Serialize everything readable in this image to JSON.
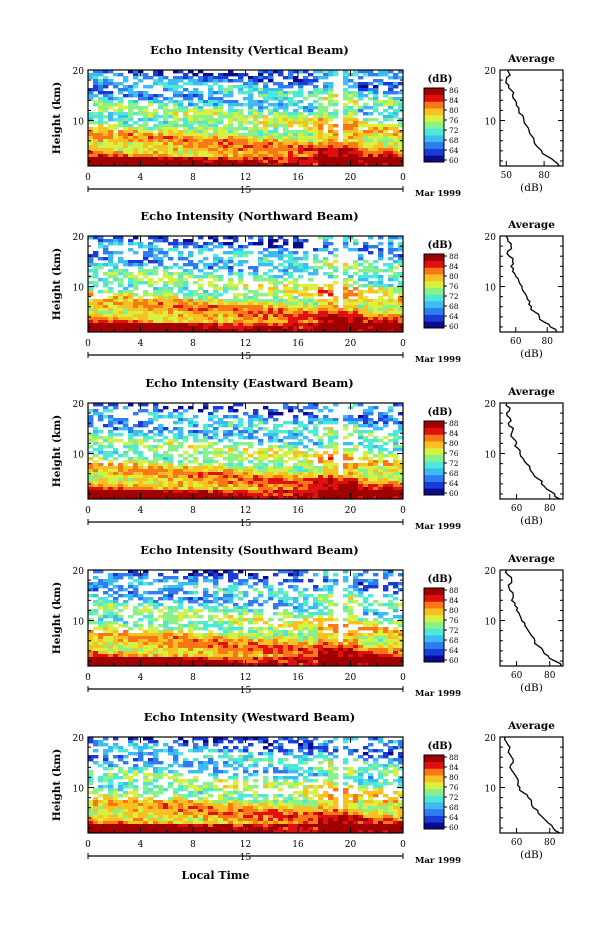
{
  "figure": {
    "xlabel": "Local Time",
    "colorbar_label": "(dB)",
    "average_title": "Average",
    "average_xlabel": "(dB)",
    "ylabel": "Height (km)",
    "date_label": "Mar 1999",
    "day_label": "15",
    "colormap": [
      "#0a0a8c",
      "#1a3cd6",
      "#2f7cf0",
      "#3cbcf0",
      "#4ee8d8",
      "#8af08a",
      "#d8f040",
      "#f8c020",
      "#f87818",
      "#e01010",
      "#a00000"
    ]
  },
  "chart_data": [
    {
      "type": "heatmap",
      "title": "Echo Intensity (Vertical Beam)",
      "x_ticks": [
        "0",
        "4",
        "8",
        "12",
        "16",
        "20",
        "0"
      ],
      "y_ticks": [
        "20",
        "10"
      ],
      "ylim": [
        1,
        20
      ],
      "xlim": [
        0,
        24
      ],
      "colorbar_ticks": [
        "86",
        "84",
        "80",
        "76",
        "72",
        "68",
        "64",
        "60"
      ],
      "colorbar_range": [
        60,
        86
      ],
      "average": {
        "title": "Average",
        "x_ticks": [
          "50",
          "80"
        ],
        "y_ticks": [
          "20",
          "10"
        ],
        "xlim": [
          45,
          95
        ],
        "ylim": [
          1,
          20
        ],
        "profile": [
          {
            "h": 1,
            "db": 92
          },
          {
            "h": 2,
            "db": 88
          },
          {
            "h": 3,
            "db": 82
          },
          {
            "h": 4,
            "db": 78
          },
          {
            "h": 5,
            "db": 74
          },
          {
            "h": 6,
            "db": 72
          },
          {
            "h": 7,
            "db": 70
          },
          {
            "h": 8,
            "db": 68
          },
          {
            "h": 9,
            "db": 66
          },
          {
            "h": 10,
            "db": 64
          },
          {
            "h": 11,
            "db": 63
          },
          {
            "h": 12,
            "db": 60
          },
          {
            "h": 13,
            "db": 58
          },
          {
            "h": 14,
            "db": 57
          },
          {
            "h": 15,
            "db": 55
          },
          {
            "h": 16,
            "db": 54
          },
          {
            "h": 17,
            "db": 52
          },
          {
            "h": 18,
            "db": 50
          },
          {
            "h": 19,
            "db": 53
          },
          {
            "h": 20,
            "db": 51
          }
        ]
      }
    },
    {
      "type": "heatmap",
      "title": "Echo Intensity (Northward Beam)",
      "x_ticks": [
        "0",
        "4",
        "8",
        "12",
        "16",
        "20",
        "0"
      ],
      "y_ticks": [
        "20",
        "10"
      ],
      "ylim": [
        1,
        20
      ],
      "xlim": [
        0,
        24
      ],
      "colorbar_ticks": [
        "88",
        "84",
        "80",
        "76",
        "72",
        "68",
        "64",
        "60"
      ],
      "colorbar_range": [
        60,
        88
      ],
      "average": {
        "title": "Average",
        "x_ticks": [
          "60",
          "80"
        ],
        "y_ticks": [
          "20",
          "10"
        ],
        "xlim": [
          50,
          90
        ],
        "ylim": [
          1,
          20
        ],
        "profile": [
          {
            "h": 1,
            "db": 86
          },
          {
            "h": 2,
            "db": 82
          },
          {
            "h": 3,
            "db": 78
          },
          {
            "h": 4,
            "db": 75
          },
          {
            "h": 5,
            "db": 72
          },
          {
            "h": 6,
            "db": 70
          },
          {
            "h": 7,
            "db": 69
          },
          {
            "h": 8,
            "db": 67
          },
          {
            "h": 9,
            "db": 65
          },
          {
            "h": 10,
            "db": 64
          },
          {
            "h": 11,
            "db": 62
          },
          {
            "h": 12,
            "db": 60
          },
          {
            "h": 13,
            "db": 58
          },
          {
            "h": 14,
            "db": 57
          },
          {
            "h": 15,
            "db": 58
          },
          {
            "h": 16,
            "db": 56
          },
          {
            "h": 17,
            "db": 55
          },
          {
            "h": 18,
            "db": 57
          },
          {
            "h": 19,
            "db": 55
          },
          {
            "h": 20,
            "db": 54
          }
        ]
      }
    },
    {
      "type": "heatmap",
      "title": "Echo Intensity (Eastward Beam)",
      "x_ticks": [
        "0",
        "4",
        "8",
        "12",
        "16",
        "20",
        "0"
      ],
      "y_ticks": [
        "20",
        "10"
      ],
      "ylim": [
        1,
        20
      ],
      "xlim": [
        0,
        24
      ],
      "colorbar_ticks": [
        "88",
        "84",
        "80",
        "76",
        "72",
        "68",
        "64",
        "60"
      ],
      "colorbar_range": [
        60,
        88
      ],
      "average": {
        "title": "Average",
        "x_ticks": [
          "60",
          "80"
        ],
        "y_ticks": [
          "20",
          "10"
        ],
        "xlim": [
          50,
          88
        ],
        "ylim": [
          1,
          20
        ],
        "profile": [
          {
            "h": 1,
            "db": 86
          },
          {
            "h": 2,
            "db": 83
          },
          {
            "h": 3,
            "db": 78
          },
          {
            "h": 4,
            "db": 75
          },
          {
            "h": 5,
            "db": 73
          },
          {
            "h": 6,
            "db": 70
          },
          {
            "h": 7,
            "db": 68
          },
          {
            "h": 8,
            "db": 66
          },
          {
            "h": 9,
            "db": 64
          },
          {
            "h": 10,
            "db": 62
          },
          {
            "h": 11,
            "db": 61
          },
          {
            "h": 12,
            "db": 60
          },
          {
            "h": 13,
            "db": 58
          },
          {
            "h": 14,
            "db": 57
          },
          {
            "h": 15,
            "db": 58
          },
          {
            "h": 16,
            "db": 55
          },
          {
            "h": 17,
            "db": 56
          },
          {
            "h": 18,
            "db": 54
          },
          {
            "h": 19,
            "db": 56
          },
          {
            "h": 20,
            "db": 54
          }
        ]
      }
    },
    {
      "type": "heatmap",
      "title": "Echo Intensity (Southward Beam)",
      "x_ticks": [
        "0",
        "4",
        "8",
        "12",
        "16",
        "20",
        "0"
      ],
      "y_ticks": [
        "20",
        "10"
      ],
      "ylim": [
        1,
        20
      ],
      "xlim": [
        0,
        24
      ],
      "colorbar_ticks": [
        "88",
        "84",
        "80",
        "76",
        "72",
        "68",
        "64",
        "60"
      ],
      "colorbar_range": [
        60,
        88
      ],
      "average": {
        "title": "Average",
        "x_ticks": [
          "60",
          "80"
        ],
        "y_ticks": [
          "20",
          "10"
        ],
        "xlim": [
          50,
          88
        ],
        "ylim": [
          1,
          20
        ],
        "profile": [
          {
            "h": 1,
            "db": 87
          },
          {
            "h": 2,
            "db": 83
          },
          {
            "h": 3,
            "db": 79
          },
          {
            "h": 4,
            "db": 76
          },
          {
            "h": 5,
            "db": 73
          },
          {
            "h": 6,
            "db": 71
          },
          {
            "h": 7,
            "db": 69
          },
          {
            "h": 8,
            "db": 67
          },
          {
            "h": 9,
            "db": 65
          },
          {
            "h": 10,
            "db": 63
          },
          {
            "h": 11,
            "db": 62
          },
          {
            "h": 12,
            "db": 60
          },
          {
            "h": 13,
            "db": 59
          },
          {
            "h": 14,
            "db": 57
          },
          {
            "h": 15,
            "db": 58
          },
          {
            "h": 16,
            "db": 56
          },
          {
            "h": 17,
            "db": 55
          },
          {
            "h": 18,
            "db": 57
          },
          {
            "h": 19,
            "db": 55
          },
          {
            "h": 20,
            "db": 54
          }
        ]
      }
    },
    {
      "type": "heatmap",
      "title": "Echo Intensity (Westward Beam)",
      "x_ticks": [
        "0",
        "4",
        "8",
        "12",
        "16",
        "20",
        "0"
      ],
      "y_ticks": [
        "20",
        "10"
      ],
      "ylim": [
        1,
        20
      ],
      "xlim": [
        0,
        24
      ],
      "colorbar_ticks": [
        "88",
        "84",
        "80",
        "76",
        "72",
        "68",
        "64",
        "60"
      ],
      "colorbar_range": [
        60,
        88
      ],
      "average": {
        "title": "Average",
        "x_ticks": [
          "60",
          "80"
        ],
        "y_ticks": [
          "20",
          "10"
        ],
        "xlim": [
          50,
          88
        ],
        "ylim": [
          1,
          20
        ],
        "profile": [
          {
            "h": 1,
            "db": 86
          },
          {
            "h": 2,
            "db": 82
          },
          {
            "h": 3,
            "db": 79
          },
          {
            "h": 4,
            "db": 76
          },
          {
            "h": 5,
            "db": 73
          },
          {
            "h": 6,
            "db": 70
          },
          {
            "h": 7,
            "db": 69
          },
          {
            "h": 8,
            "db": 67
          },
          {
            "h": 9,
            "db": 64
          },
          {
            "h": 10,
            "db": 62
          },
          {
            "h": 11,
            "db": 61
          },
          {
            "h": 12,
            "db": 60
          },
          {
            "h": 13,
            "db": 58
          },
          {
            "h": 14,
            "db": 56
          },
          {
            "h": 15,
            "db": 58
          },
          {
            "h": 16,
            "db": 57
          },
          {
            "h": 17,
            "db": 55
          },
          {
            "h": 18,
            "db": 56
          },
          {
            "h": 19,
            "db": 54
          },
          {
            "h": 20,
            "db": 53
          }
        ]
      }
    }
  ]
}
